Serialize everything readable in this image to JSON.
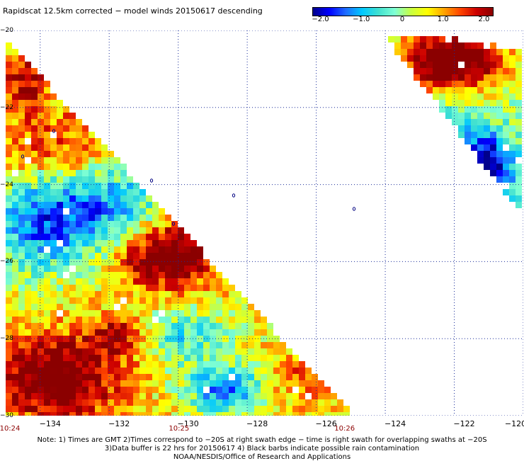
{
  "title": "Rapidscat 12.5km corrected − model winds 20150617 descending",
  "colorbar": {
    "stops": [
      "#00008b",
      "#0000ff",
      "#1e6bff",
      "#00c8ff",
      "#40e0d0",
      "#7fffd4",
      "#c8ff40",
      "#ffff00",
      "#ffa500",
      "#ff4500",
      "#cc0000",
      "#8b0000"
    ],
    "ticks": [
      {
        "label": "−2.0",
        "value": -2.0
      },
      {
        "label": "−1.0",
        "value": -1.0
      },
      {
        "label": "0",
        "value": 0
      },
      {
        "label": "1.0",
        "value": 1.0
      },
      {
        "label": "2.0",
        "value": 2.0
      }
    ],
    "range": [
      -2.2,
      2.2
    ]
  },
  "latitude_labels": [
    {
      "label": "−20",
      "value": -20
    },
    {
      "label": "−22",
      "value": -22
    },
    {
      "label": "−24",
      "value": -24
    },
    {
      "label": "−26",
      "value": -26
    },
    {
      "label": "−28",
      "value": -28
    },
    {
      "label": "−30",
      "value": -30
    }
  ],
  "longitude_labels": [
    {
      "label": "−134",
      "value": -134
    },
    {
      "label": "−132",
      "value": -132
    },
    {
      "label": "−130",
      "value": -130
    },
    {
      "label": "−128",
      "value": -128
    },
    {
      "label": "−126",
      "value": -126
    },
    {
      "label": "−124",
      "value": -124
    },
    {
      "label": "−122",
      "value": -122
    },
    {
      "label": "−120",
      "value": -120
    }
  ],
  "map_extent": {
    "lon": [
      -135,
      -120
    ],
    "lat": [
      -30,
      -20
    ]
  },
  "swath_times": [
    {
      "label": "10:24",
      "lon": -135.0
    },
    {
      "label": "10:25",
      "lon": -130.1
    },
    {
      "label": "10:26",
      "lon": -125.3
    }
  ],
  "notes": {
    "line1": "Note: 1) Times are GMT 2)Times correspond to −20S at right swath edge − time is right swath for overlapping swaths at −20S",
    "line2": "3)Data buffer is 22 hrs for 20150617 4) Black barbs indicate possible rain contamination",
    "line3": "NOAA/NESDIS/Office of Research and Applications"
  },
  "colors": {
    "grid": "#1b2e9a",
    "coast": "#000080",
    "time_label": "#8b0000"
  }
}
